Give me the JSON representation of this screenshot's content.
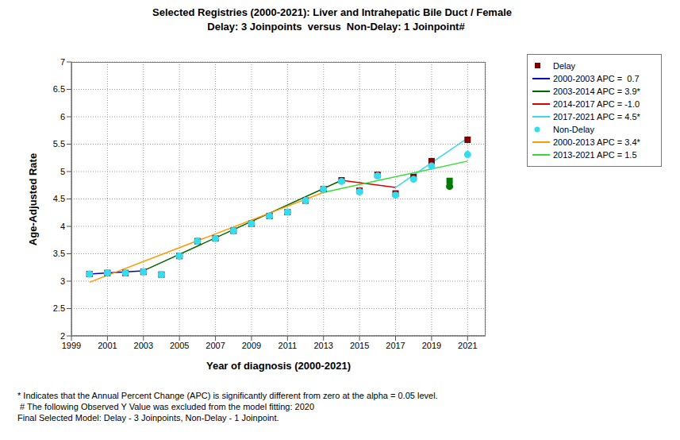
{
  "chart_data": {
    "type": "scatter",
    "title": "Selected Registries (2000-2021): Liver and Intrahepatic Bile Duct / Female",
    "subtitle": "Delay: 3 Joinpoints  versus  Non-Delay: 1 Joinpoint#",
    "x_label": "Year of diagnosis (2000-2021)",
    "y_label": "Age-Adjusted Rate",
    "annotations": [
      "* Indicates that the Annual Percent Change (APC) is significantly different from zero at the alpha = 0.05 level.",
      " # The following Observed Y Value was excluded from the model fitting: 2020",
      "Final Selected Model: Delay - 3 Joinpoints, Non-Delay - 1 Joinpoint."
    ],
    "x": [
      2000,
      2001,
      2002,
      2003,
      2004,
      2005,
      2006,
      2007,
      2008,
      2009,
      2010,
      2011,
      2012,
      2013,
      2014,
      2015,
      2016,
      2017,
      2018,
      2019,
      2020,
      2021
    ],
    "xlim": [
      1999,
      2022
    ],
    "xticks": [
      1999,
      2001,
      2003,
      2005,
      2007,
      2009,
      2011,
      2013,
      2015,
      2017,
      2019,
      2021
    ],
    "ylim": [
      2,
      7
    ],
    "yticks": [
      2,
      2.5,
      3,
      3.5,
      4,
      4.5,
      5,
      5.5,
      6,
      6.5,
      7
    ],
    "grid": true,
    "legend": "right",
    "series": [
      {
        "name": "Delay",
        "type": "scatter",
        "marker": "square",
        "color": "#800000",
        "colors": [
          "#800000",
          "#800000",
          "#800000",
          "#800000",
          "#800000",
          "#800000",
          "#800000",
          "#800000",
          "#800000",
          "#800000",
          "#800000",
          "#800000",
          "#800000",
          "#800000",
          "#800000",
          "#800000",
          "#800000",
          "#800000",
          "#800000",
          "#800000",
          "#007a00",
          "#800000"
        ],
        "values": [
          3.13,
          3.15,
          3.15,
          3.17,
          3.12,
          3.46,
          3.73,
          3.78,
          3.92,
          4.05,
          4.19,
          4.26,
          4.47,
          4.68,
          4.84,
          4.65,
          4.94,
          4.6,
          4.9,
          5.19,
          4.83,
          5.58
        ]
      },
      {
        "name": "2000-2003 APC =  0.7",
        "type": "line",
        "color": "#0000cc",
        "x": [
          2000,
          2003
        ],
        "values": [
          3.13,
          3.19
        ]
      },
      {
        "name": "2003-2014 APC = 3.9*",
        "type": "line",
        "color": "#006600",
        "x": [
          2003,
          2014
        ],
        "values": [
          3.19,
          4.84
        ]
      },
      {
        "name": "2014-2017 APC = -1.0",
        "type": "line",
        "color": "#dd0000",
        "x": [
          2014,
          2017
        ],
        "values": [
          4.84,
          4.71
        ]
      },
      {
        "name": "2017-2021 APC = 4.5*",
        "type": "line",
        "color": "#40d8e8",
        "x": [
          2017,
          2021
        ],
        "values": [
          4.71,
          5.61
        ]
      },
      {
        "name": "Non-Delay",
        "type": "scatter",
        "marker": "circle",
        "color": "#33ddee",
        "colors": [
          "#33ddee",
          "#33ddee",
          "#33ddee",
          "#33ddee",
          "#33ddee",
          "#33ddee",
          "#33ddee",
          "#33ddee",
          "#33ddee",
          "#33ddee",
          "#33ddee",
          "#33ddee",
          "#33ddee",
          "#33ddee",
          "#33ddee",
          "#33ddee",
          "#33ddee",
          "#33ddee",
          "#33ddee",
          "#33ddee",
          "#007a00",
          "#33ddee"
        ],
        "values": [
          3.13,
          3.15,
          3.15,
          3.17,
          3.12,
          3.46,
          3.73,
          3.78,
          3.92,
          4.05,
          4.19,
          4.26,
          4.47,
          4.68,
          4.82,
          4.63,
          4.92,
          4.57,
          4.86,
          5.1,
          4.73,
          5.31
        ]
      },
      {
        "name": "2000-2013 APC = 3.4*",
        "type": "line",
        "color": "#ff9900",
        "x": [
          2000,
          2013
        ],
        "values": [
          2.98,
          4.62
        ]
      },
      {
        "name": "2013-2021 APC = 1.5",
        "type": "line",
        "color": "#33dd33",
        "x": [
          2013,
          2021
        ],
        "values": [
          4.62,
          5.19
        ]
      }
    ]
  }
}
